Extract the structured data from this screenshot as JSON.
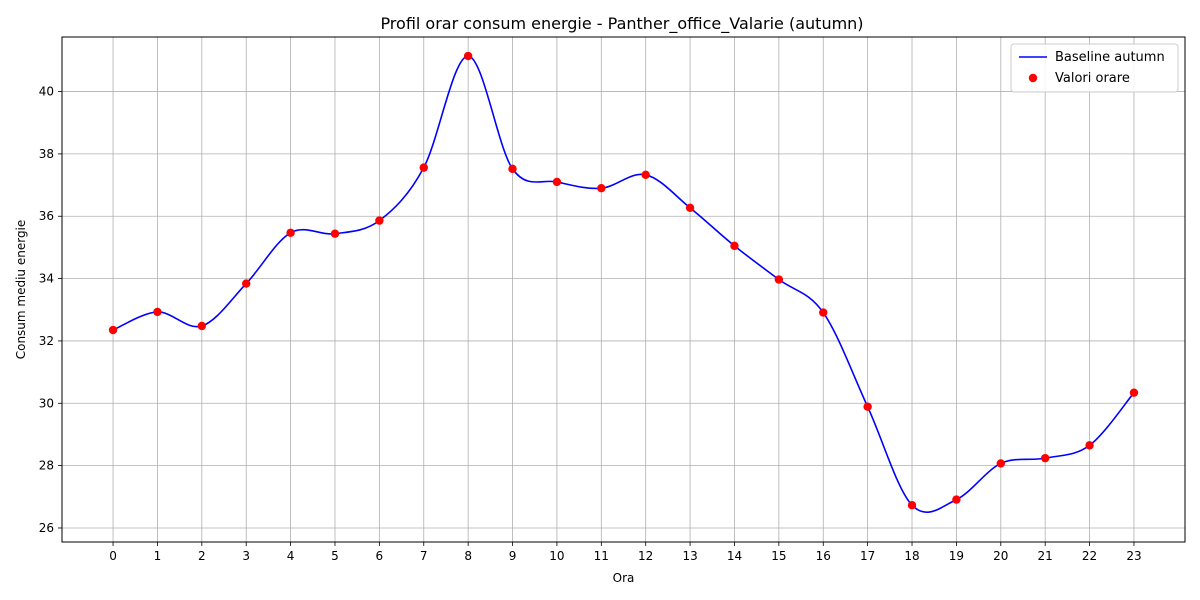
{
  "chart_data": {
    "type": "line",
    "title": "Profil orar consum energie - Panther_office_Valarie (autumn)",
    "xlabel": "Ora",
    "ylabel": "Consum mediu energie",
    "x": [
      0,
      1,
      2,
      3,
      4,
      5,
      6,
      7,
      8,
      9,
      10,
      11,
      12,
      13,
      14,
      15,
      16,
      17,
      18,
      19,
      20,
      21,
      22,
      23
    ],
    "xlim": [
      -1.15,
      24.15
    ],
    "ylim": [
      25.55,
      41.75
    ],
    "yticks": [
      26,
      28,
      30,
      32,
      34,
      36,
      38,
      40
    ],
    "grid": true,
    "legend_position": "top-right",
    "series": [
      {
        "name": "Baseline autumn",
        "kind": "line",
        "color": "#0000ff",
        "values": [
          32.35,
          32.93,
          32.48,
          33.84,
          35.47,
          35.44,
          35.86,
          37.56,
          41.14,
          37.52,
          37.1,
          36.9,
          37.33,
          36.27,
          35.05,
          33.97,
          32.91,
          29.89,
          26.73,
          26.91,
          28.07,
          28.24,
          28.65,
          30.34
        ]
      },
      {
        "name": "Valori orare",
        "kind": "scatter",
        "color": "#ff0000",
        "values": [
          32.35,
          32.93,
          32.48,
          33.84,
          35.47,
          35.44,
          35.86,
          37.56,
          41.14,
          37.52,
          37.1,
          36.9,
          37.33,
          36.27,
          35.05,
          33.97,
          32.91,
          29.89,
          26.73,
          26.91,
          28.07,
          28.24,
          28.65,
          30.34
        ]
      }
    ]
  }
}
